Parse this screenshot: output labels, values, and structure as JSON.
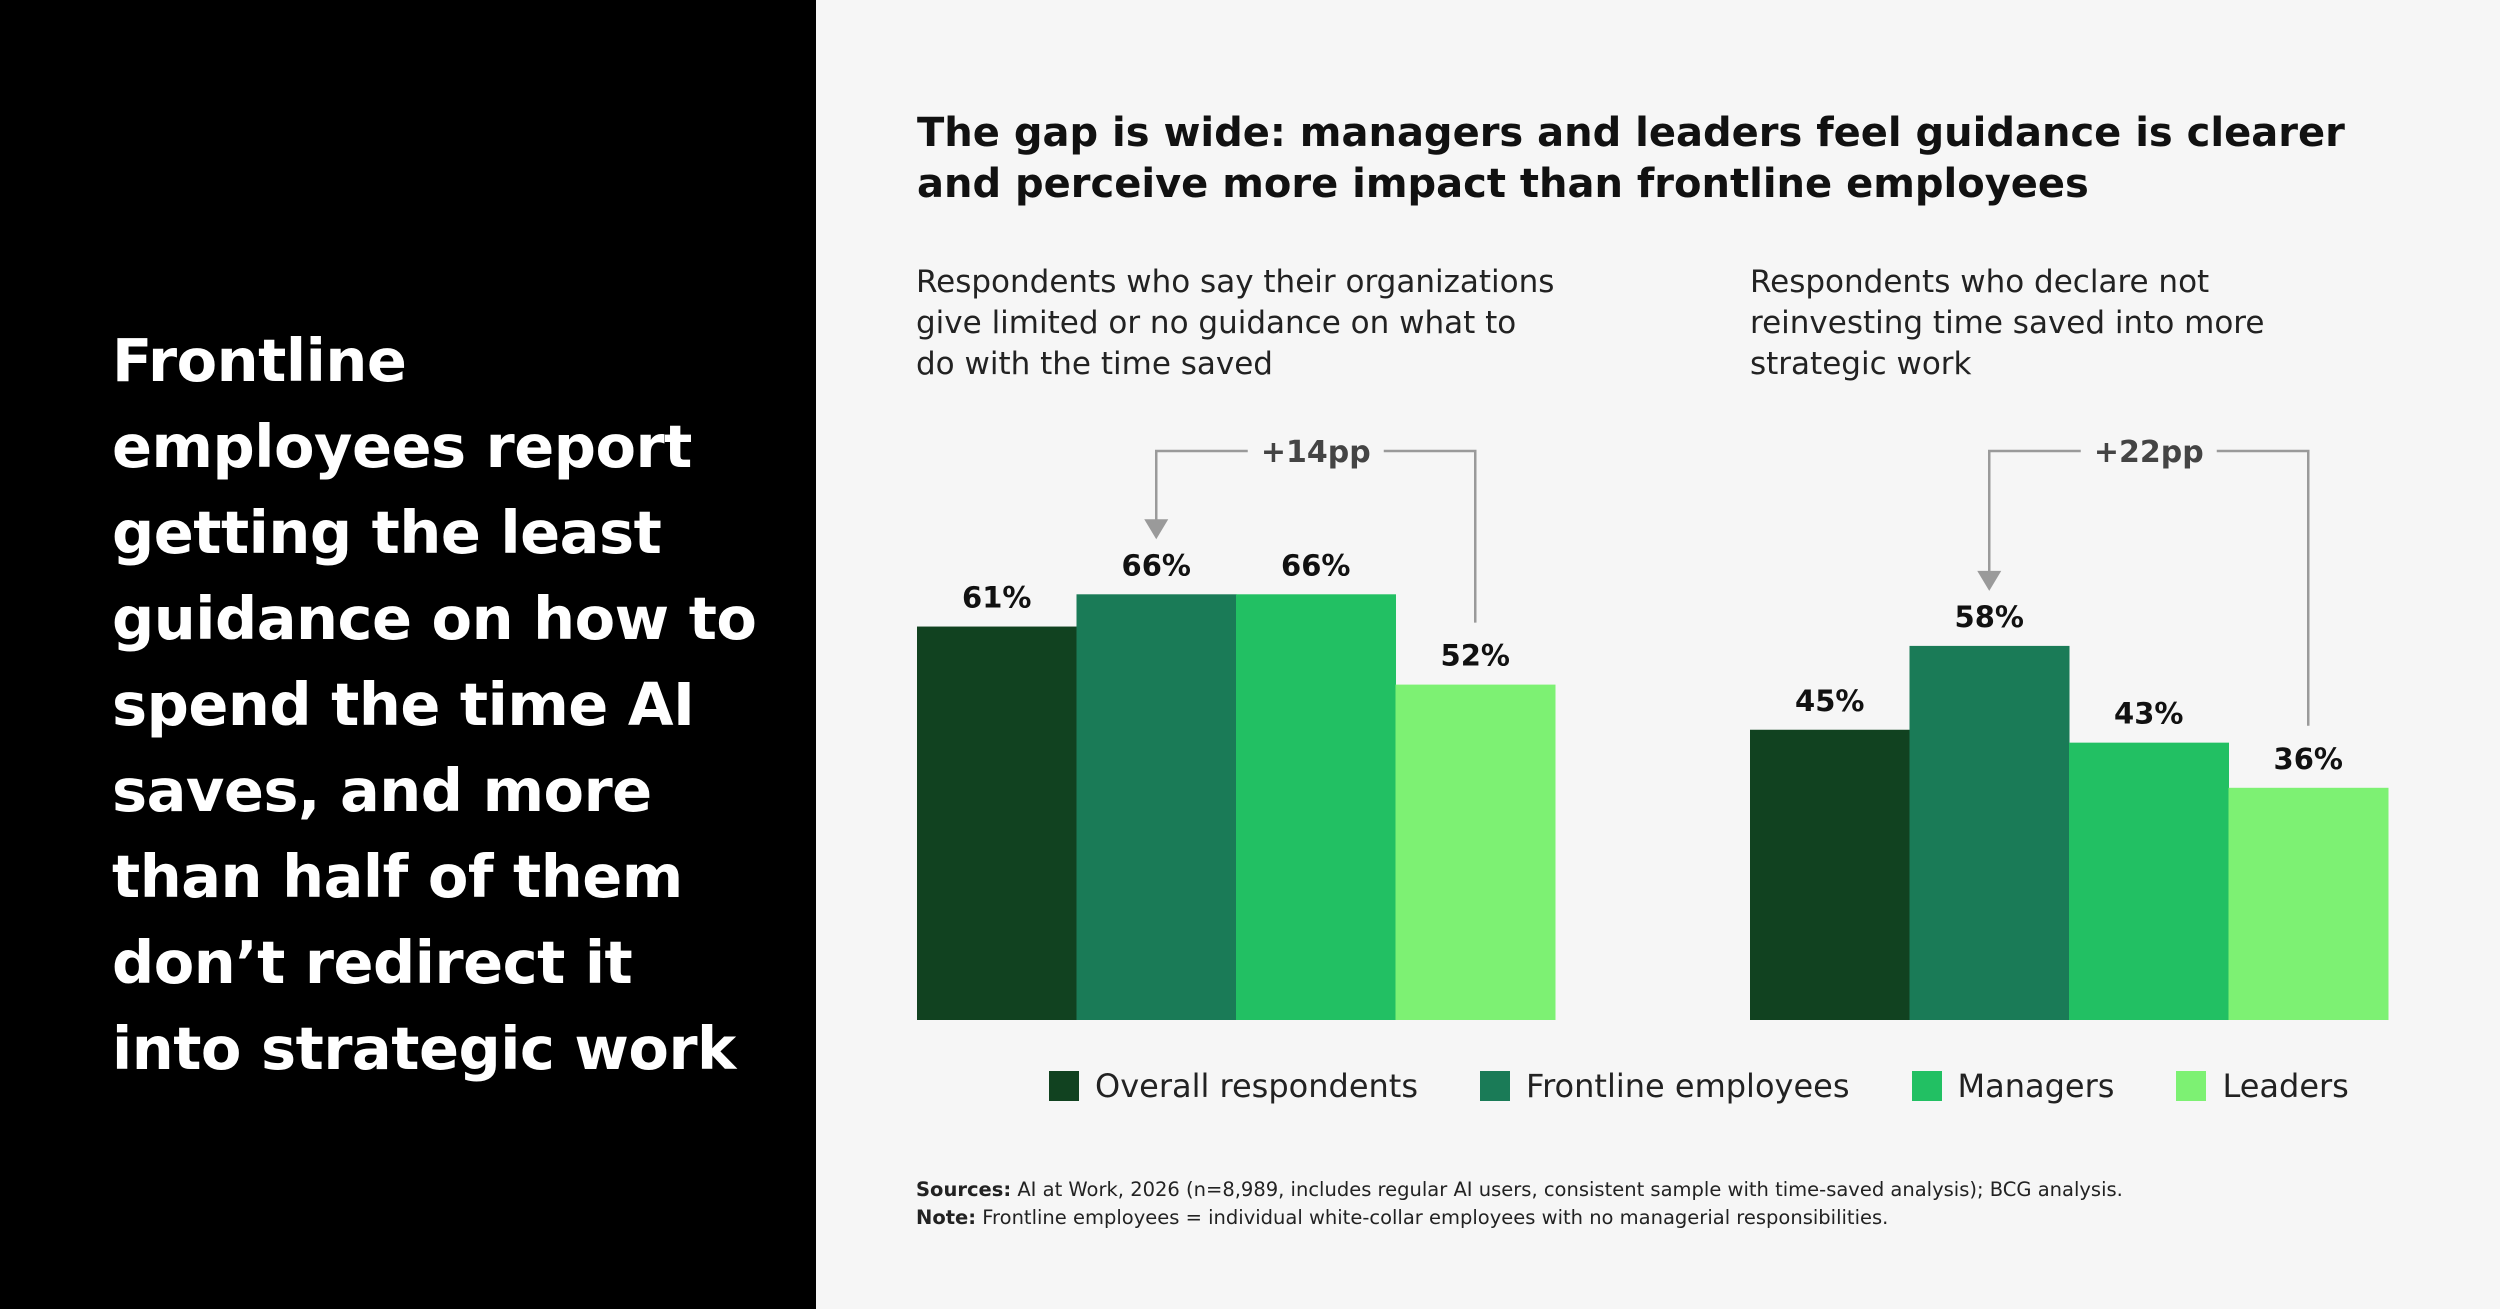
{
  "headline": "Frontline employees report getting the least guidance on how to spend the time AI saves, and more than half of them don’t redirect it into strategic work",
  "chart_title": "The gap is wide: managers and leaders feel guidance is clearer and perceive more impact than frontline employees",
  "legend": [
    {
      "label": "Overall respondents",
      "color": "#114220"
    },
    {
      "label": "Frontline employees",
      "color": "#1a7b57"
    },
    {
      "label": "Managers",
      "color": "#22c063"
    },
    {
      "label": "Leaders",
      "color": "#7df173"
    }
  ],
  "chart_data": [
    {
      "type": "bar",
      "subtitle": "Respondents who say their organizations give limited or no guidance on what to do with the time saved",
      "categories": [
        "Overall respondents",
        "Frontline employees",
        "Managers",
        "Leaders"
      ],
      "values": [
        61,
        66,
        66,
        52
      ],
      "value_labels": [
        "61%",
        "66%",
        "66%",
        "52%"
      ],
      "annotation": {
        "label": "+14pp",
        "from": "Leaders",
        "to": "Frontline employees"
      },
      "ylim": [
        0,
        100
      ]
    },
    {
      "type": "bar",
      "subtitle": "Respondents who declare not reinvesting time saved into more strategic work",
      "categories": [
        "Overall respondents",
        "Frontline employees",
        "Managers",
        "Leaders"
      ],
      "values": [
        45,
        58,
        43,
        36
      ],
      "value_labels": [
        "45%",
        "58%",
        "43%",
        "36%"
      ],
      "annotation": {
        "label": "+22pp",
        "from": "Leaders",
        "to": "Frontline employees"
      },
      "ylim": [
        0,
        100
      ]
    }
  ],
  "notes": {
    "sources_label": "Sources:",
    "sources_text": " AI at Work, 2026 (n=8,989, includes regular AI users, consistent sample with time-saved analysis); BCG analysis.",
    "note_label": "Note:",
    "note_text": " Frontline employees = individual white-collar employees with no managerial responsibilities."
  }
}
